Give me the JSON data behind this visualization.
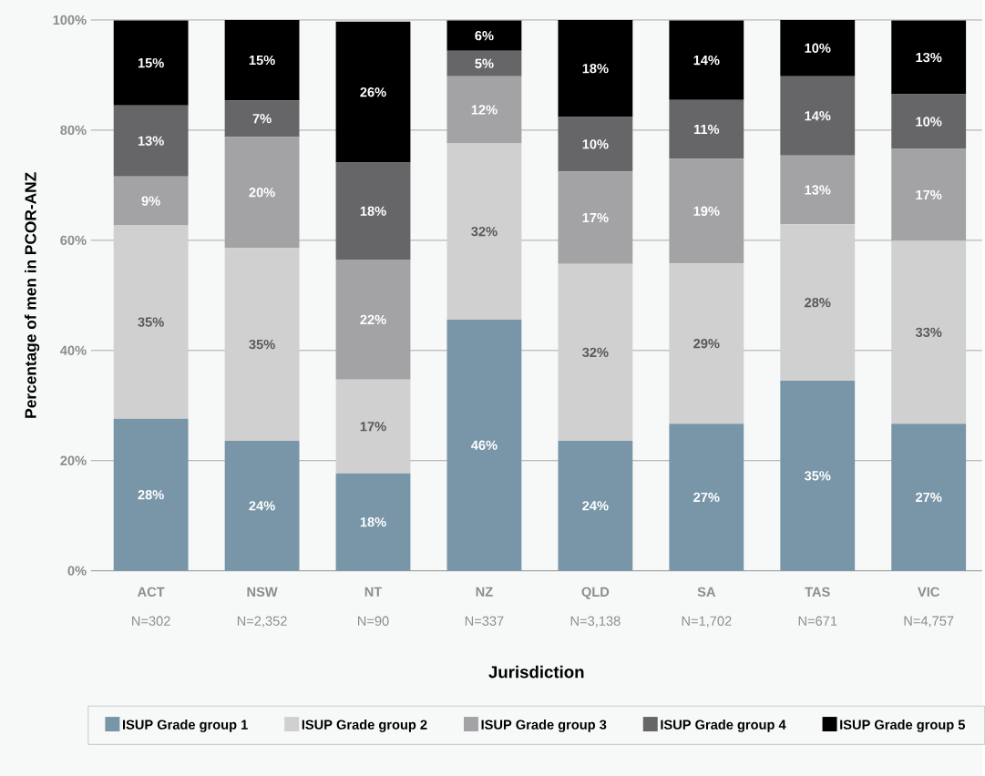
{
  "chart_data": {
    "type": "bar",
    "stacked": true,
    "xlabel": "Jurisdiction",
    "ylabel": "Percentage of men in PCOR-ANZ",
    "categories": [
      "ACT",
      "NSW",
      "NT",
      "NZ",
      "QLD",
      "SA",
      "TAS",
      "VIC"
    ],
    "series": [
      {
        "name": "ISUP Grade group 1",
        "color": "#7896a8",
        "values": [
          27.6,
          23.6,
          17.7,
          45.6,
          23.6,
          26.7,
          34.5,
          26.7
        ],
        "value_labels": [
          "28%",
          "24%",
          "18%",
          "46%",
          "24%",
          "27%",
          "35%",
          "27%"
        ]
      },
      {
        "name": "ISUP Grade group 2",
        "color": "#d0d0d0",
        "values": [
          35.1,
          35.0,
          17.0,
          32.0,
          32.1,
          29.1,
          28.4,
          33.2
        ],
        "value_labels": [
          "35%",
          "35%",
          "17%",
          "32%",
          "32%",
          "29%",
          "28%",
          "33%"
        ]
      },
      {
        "name": "ISUP Grade group 3",
        "color": "#a3a3a5",
        "values": [
          8.9,
          20.2,
          21.8,
          12.2,
          16.8,
          19.0,
          12.5,
          16.7
        ],
        "value_labels": [
          "9%",
          "20%",
          "22%",
          "12%",
          "17%",
          "19%",
          "13%",
          "17%"
        ]
      },
      {
        "name": "ISUP Grade group 4",
        "color": "#666668",
        "values": [
          12.9,
          6.6,
          17.6,
          4.6,
          9.9,
          10.7,
          14.4,
          9.9
        ],
        "value_labels": [
          "13%",
          "7%",
          "18%",
          "5%",
          "10%",
          "11%",
          "14%",
          "10%"
        ]
      },
      {
        "name": "ISUP Grade group 5",
        "color": "#000000",
        "values": [
          15.4,
          14.6,
          25.6,
          5.5,
          17.6,
          14.4,
          10.2,
          13.4
        ],
        "value_labels": [
          "15%",
          "15%",
          "26%",
          "6%",
          "18%",
          "14%",
          "10%",
          "13%"
        ]
      }
    ],
    "ylim": [
      0,
      100
    ],
    "yticks": [
      {
        "value": 0,
        "label": "0%"
      },
      {
        "value": 20,
        "label": "20%"
      },
      {
        "value": 40,
        "label": "40%"
      },
      {
        "value": 60,
        "label": "60%"
      },
      {
        "value": 80,
        "label": "80%"
      },
      {
        "value": 100,
        "label": "100%"
      }
    ],
    "grid": "y",
    "legend": "bottom",
    "annotations": [
      "N=302",
      "N=2,352",
      "N=90",
      "N=337",
      "N=3,138",
      "N=1,702",
      "N=671",
      "N=4,757"
    ]
  }
}
